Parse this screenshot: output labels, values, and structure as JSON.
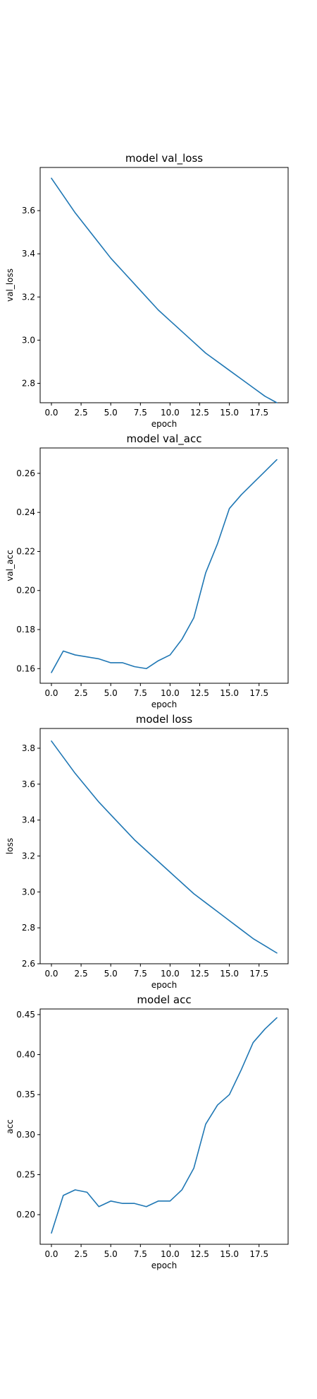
{
  "chart_data": [
    {
      "type": "line",
      "title": "model val_loss",
      "xlabel": "epoch",
      "ylabel": "val_loss",
      "xlim": [
        -0.95,
        19.95
      ],
      "ylim": [
        2.71,
        3.8
      ],
      "xticks": [
        0.0,
        2.5,
        5.0,
        7.5,
        10.0,
        12.5,
        15.0,
        17.5
      ],
      "xtick_labels": [
        "0.0",
        "2.5",
        "5.0",
        "7.5",
        "10.0",
        "12.5",
        "15.0",
        "17.5"
      ],
      "yticks": [
        2.8,
        3.0,
        3.2,
        3.4,
        3.6
      ],
      "ytick_labels": [
        "2.8",
        "3.0",
        "3.2",
        "3.4",
        "3.6"
      ],
      "grid": false,
      "color": "#1f77b4",
      "x": [
        0,
        1,
        2,
        3,
        4,
        5,
        6,
        7,
        8,
        9,
        10,
        11,
        12,
        13,
        14,
        15,
        16,
        17,
        18,
        19
      ],
      "y": [
        3.75,
        3.67,
        3.59,
        3.52,
        3.45,
        3.38,
        3.32,
        3.26,
        3.2,
        3.14,
        3.09,
        3.04,
        2.99,
        2.94,
        2.9,
        2.86,
        2.82,
        2.78,
        2.74,
        2.71
      ]
    },
    {
      "type": "line",
      "title": "model val_acc",
      "xlabel": "epoch",
      "ylabel": "val_acc",
      "xlim": [
        -0.95,
        19.95
      ],
      "ylim": [
        0.1525,
        0.273
      ],
      "xticks": [
        0.0,
        2.5,
        5.0,
        7.5,
        10.0,
        12.5,
        15.0,
        17.5
      ],
      "xtick_labels": [
        "0.0",
        "2.5",
        "5.0",
        "7.5",
        "10.0",
        "12.5",
        "15.0",
        "17.5"
      ],
      "yticks": [
        0.16,
        0.18,
        0.2,
        0.22,
        0.24,
        0.26
      ],
      "ytick_labels": [
        "0.16",
        "0.18",
        "0.20",
        "0.22",
        "0.24",
        "0.26"
      ],
      "grid": false,
      "color": "#1f77b4",
      "x": [
        0,
        1,
        2,
        3,
        4,
        5,
        6,
        7,
        8,
        9,
        10,
        11,
        12,
        13,
        14,
        15,
        16,
        17,
        18,
        19
      ],
      "y": [
        0.158,
        0.169,
        0.167,
        0.166,
        0.165,
        0.163,
        0.163,
        0.161,
        0.16,
        0.164,
        0.167,
        0.175,
        0.186,
        0.209,
        0.224,
        0.242,
        0.249,
        0.255,
        0.261,
        0.267
      ]
    },
    {
      "type": "line",
      "title": "model loss",
      "xlabel": "epoch",
      "ylabel": "loss",
      "xlim": [
        -0.95,
        19.95
      ],
      "ylim": [
        2.6,
        3.91
      ],
      "xticks": [
        0.0,
        2.5,
        5.0,
        7.5,
        10.0,
        12.5,
        15.0,
        17.5
      ],
      "xtick_labels": [
        "0.0",
        "2.5",
        "5.0",
        "7.5",
        "10.0",
        "12.5",
        "15.0",
        "17.5"
      ],
      "yticks": [
        2.6,
        2.8,
        3.0,
        3.2,
        3.4,
        3.6,
        3.8
      ],
      "ytick_labels": [
        "2.6",
        "2.8",
        "3.0",
        "3.2",
        "3.4",
        "3.6",
        "3.8"
      ],
      "grid": false,
      "color": "#1f77b4",
      "x": [
        0,
        1,
        2,
        3,
        4,
        5,
        6,
        7,
        8,
        9,
        10,
        11,
        12,
        13,
        14,
        15,
        16,
        17,
        18,
        19
      ],
      "y": [
        3.84,
        3.75,
        3.66,
        3.58,
        3.5,
        3.43,
        3.36,
        3.29,
        3.23,
        3.17,
        3.11,
        3.05,
        2.99,
        2.94,
        2.89,
        2.84,
        2.79,
        2.74,
        2.7,
        2.66
      ]
    },
    {
      "type": "line",
      "title": "model acc",
      "xlabel": "epoch",
      "ylabel": "acc",
      "xlim": [
        -0.95,
        19.95
      ],
      "ylim": [
        0.163,
        0.457
      ],
      "xticks": [
        0.0,
        2.5,
        5.0,
        7.5,
        10.0,
        12.5,
        15.0,
        17.5
      ],
      "xtick_labels": [
        "0.0",
        "2.5",
        "5.0",
        "7.5",
        "10.0",
        "12.5",
        "15.0",
        "17.5"
      ],
      "yticks": [
        0.2,
        0.25,
        0.3,
        0.35,
        0.4,
        0.45
      ],
      "ytick_labels": [
        "0.20",
        "0.25",
        "0.30",
        "0.35",
        "0.40",
        "0.45"
      ],
      "grid": false,
      "color": "#1f77b4",
      "x": [
        0,
        1,
        2,
        3,
        4,
        5,
        6,
        7,
        8,
        9,
        10,
        11,
        12,
        13,
        14,
        15,
        16,
        17,
        18,
        19
      ],
      "y": [
        0.177,
        0.224,
        0.231,
        0.228,
        0.21,
        0.217,
        0.214,
        0.214,
        0.21,
        0.217,
        0.217,
        0.231,
        0.258,
        0.313,
        0.337,
        0.35,
        0.381,
        0.415,
        0.432,
        0.446
      ]
    }
  ]
}
